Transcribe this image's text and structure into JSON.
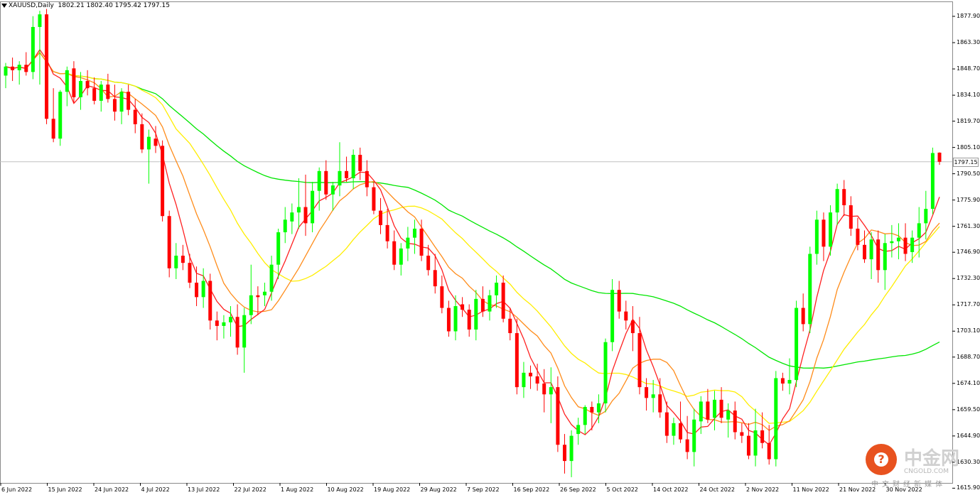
{
  "header": {
    "symbol": "XAUUSD,Daily",
    "ohlc": "1802.21 1802.40 1795.42 1797.15"
  },
  "current_price_label": "1797.15",
  "watermark": {
    "name": "中金网",
    "domain": "CNGOLD.COM",
    "subtitle": "中文财经新媒体"
  },
  "colors": {
    "up": "#00ff00",
    "down": "#ff0000",
    "ma_red": "#ff2020",
    "ma_orange": "#ff8c1a",
    "ma_yellow": "#ffee00",
    "ma_green": "#00e600",
    "frame": "#8a8a8a",
    "price_line": "#c0c0c0"
  },
  "chart_data": {
    "type": "candlestick",
    "y_range": [
      1620.0,
      1885.0
    ],
    "yticks": [
      "1877.90",
      "1863.30",
      "1848.70",
      "1834.10",
      "1819.70",
      "1805.10",
      "1790.50",
      "1775.90",
      "1761.30",
      "1746.90",
      "1732.30",
      "1717.70",
      "1703.10",
      "1688.70",
      "1674.10",
      "1659.50",
      "1644.90",
      "1630.30",
      "1615.90"
    ],
    "xticks": [
      "6 Jun 2022",
      "15 Jun 2022",
      "24 Jun 2022",
      "4 Jul 2022",
      "13 Jul 2022",
      "22 Jul 2022",
      "1 Aug 2022",
      "10 Aug 2022",
      "19 Aug 2022",
      "29 Aug 2022",
      "7 Sep 2022",
      "16 Sep 2022",
      "26 Sep 2022",
      "5 Oct 2022",
      "14 Oct 2022",
      "24 Oct 2022",
      "2 Nov 2022",
      "11 Nov 2022",
      "21 Nov 2022",
      "30 Nov 2022"
    ],
    "current_price": 1797.15,
    "candles": [
      [
        1845,
        1852,
        1838,
        1850
      ],
      [
        1850,
        1855,
        1842,
        1848
      ],
      [
        1848,
        1853,
        1840,
        1851
      ],
      [
        1851,
        1858,
        1845,
        1847
      ],
      [
        1847,
        1878,
        1843,
        1872
      ],
      [
        1872,
        1881,
        1840,
        1879
      ],
      [
        1879,
        1882,
        1818,
        1821
      ],
      [
        1821,
        1838,
        1808,
        1810
      ],
      [
        1810,
        1837,
        1806,
        1836
      ],
      [
        1836,
        1850,
        1828,
        1848
      ],
      [
        1849,
        1853,
        1830,
        1833
      ],
      [
        1833,
        1847,
        1826,
        1842
      ],
      [
        1842,
        1848,
        1834,
        1838
      ],
      [
        1838,
        1844,
        1829,
        1831
      ],
      [
        1831,
        1842,
        1825,
        1840
      ],
      [
        1840,
        1846,
        1830,
        1832
      ],
      [
        1832,
        1840,
        1820,
        1825
      ],
      [
        1825,
        1838,
        1818,
        1836
      ],
      [
        1836,
        1840,
        1823,
        1826
      ],
      [
        1826,
        1832,
        1813,
        1818
      ],
      [
        1818,
        1824,
        1802,
        1804
      ],
      [
        1804,
        1815,
        1785,
        1811
      ],
      [
        1810,
        1817,
        1802,
        1806
      ],
      [
        1806,
        1809,
        1764,
        1767
      ],
      [
        1767,
        1770,
        1733,
        1738
      ],
      [
        1738,
        1752,
        1732,
        1745
      ],
      [
        1745,
        1751,
        1737,
        1741
      ],
      [
        1741,
        1746,
        1727,
        1730
      ],
      [
        1730,
        1739,
        1717,
        1722
      ],
      [
        1722,
        1738,
        1716,
        1731
      ],
      [
        1731,
        1735,
        1704,
        1709
      ],
      [
        1709,
        1714,
        1698,
        1706
      ],
      [
        1706,
        1712,
        1699,
        1708
      ],
      [
        1708,
        1717,
        1700,
        1711
      ],
      [
        1711,
        1718,
        1690,
        1694
      ],
      [
        1694,
        1716,
        1680,
        1712
      ],
      [
        1712,
        1740,
        1707,
        1723
      ],
      [
        1723,
        1728,
        1712,
        1722
      ],
      [
        1723,
        1730,
        1717,
        1725
      ],
      [
        1725,
        1745,
        1720,
        1740
      ],
      [
        1740,
        1760,
        1732,
        1758
      ],
      [
        1758,
        1772,
        1752,
        1765
      ],
      [
        1764,
        1774,
        1757,
        1769
      ],
      [
        1769,
        1788,
        1760,
        1772
      ],
      [
        1772,
        1790,
        1756,
        1763
      ],
      [
        1763,
        1786,
        1758,
        1781
      ],
      [
        1781,
        1794,
        1770,
        1792
      ],
      [
        1792,
        1798,
        1776,
        1779
      ],
      [
        1779,
        1786,
        1770,
        1784
      ],
      [
        1784,
        1808,
        1778,
        1792
      ],
      [
        1792,
        1800,
        1786,
        1788
      ],
      [
        1788,
        1804,
        1782,
        1801
      ],
      [
        1801,
        1805,
        1787,
        1792
      ],
      [
        1792,
        1798,
        1778,
        1783
      ],
      [
        1783,
        1786,
        1768,
        1770
      ],
      [
        1770,
        1777,
        1757,
        1762
      ],
      [
        1762,
        1771,
        1749,
        1753
      ],
      [
        1753,
        1759,
        1737,
        1740
      ],
      [
        1740,
        1752,
        1734,
        1749
      ],
      [
        1749,
        1761,
        1742,
        1755
      ],
      [
        1755,
        1765,
        1746,
        1760
      ],
      [
        1760,
        1765,
        1742,
        1745
      ],
      [
        1745,
        1751,
        1734,
        1737
      ],
      [
        1737,
        1746,
        1724,
        1728
      ],
      [
        1728,
        1734,
        1713,
        1716
      ],
      [
        1716,
        1720,
        1700,
        1703
      ],
      [
        1703,
        1723,
        1698,
        1717
      ],
      [
        1718,
        1722,
        1711,
        1715
      ],
      [
        1715,
        1718,
        1700,
        1704
      ],
      [
        1704,
        1726,
        1698,
        1721
      ],
      [
        1721,
        1728,
        1711,
        1714
      ],
      [
        1714,
        1726,
        1709,
        1723
      ],
      [
        1723,
        1734,
        1716,
        1730
      ],
      [
        1730,
        1734,
        1708,
        1710
      ],
      [
        1710,
        1716,
        1698,
        1702
      ],
      [
        1702,
        1710,
        1668,
        1672
      ],
      [
        1672,
        1686,
        1666,
        1680
      ],
      [
        1680,
        1684,
        1671,
        1678
      ],
      [
        1678,
        1685,
        1670,
        1674
      ],
      [
        1674,
        1682,
        1658,
        1668
      ],
      [
        1668,
        1683,
        1652,
        1672
      ],
      [
        1672,
        1678,
        1636,
        1640
      ],
      [
        1640,
        1646,
        1624,
        1631
      ],
      [
        1631,
        1648,
        1622,
        1645
      ],
      [
        1646,
        1655,
        1640,
        1651
      ],
      [
        1651,
        1662,
        1646,
        1661
      ],
      [
        1661,
        1664,
        1648,
        1658
      ],
      [
        1658,
        1668,
        1652,
        1663
      ],
      [
        1663,
        1699,
        1658,
        1697
      ],
      [
        1697,
        1732,
        1692,
        1726
      ],
      [
        1726,
        1731,
        1710,
        1714
      ],
      [
        1714,
        1720,
        1704,
        1709
      ],
      [
        1709,
        1717,
        1692,
        1702
      ],
      [
        1702,
        1711,
        1668,
        1672
      ],
      [
        1672,
        1677,
        1659,
        1666
      ],
      [
        1666,
        1676,
        1658,
        1668
      ],
      [
        1668,
        1677,
        1655,
        1658
      ],
      [
        1658,
        1664,
        1641,
        1645
      ],
      [
        1645,
        1655,
        1640,
        1652
      ],
      [
        1652,
        1664,
        1641,
        1643
      ],
      [
        1643,
        1656,
        1632,
        1636
      ],
      [
        1636,
        1660,
        1628,
        1654
      ],
      [
        1653,
        1667,
        1646,
        1664
      ],
      [
        1664,
        1671,
        1652,
        1654
      ],
      [
        1655,
        1670,
        1648,
        1665
      ],
      [
        1665,
        1672,
        1652,
        1655
      ],
      [
        1654,
        1663,
        1644,
        1659
      ],
      [
        1659,
        1664,
        1643,
        1647
      ],
      [
        1647,
        1652,
        1641,
        1645
      ],
      [
        1645,
        1652,
        1632,
        1634
      ],
      [
        1634,
        1660,
        1628,
        1648
      ],
      [
        1648,
        1658,
        1638,
        1641
      ],
      [
        1641,
        1651,
        1629,
        1632
      ],
      [
        1632,
        1681,
        1628,
        1677
      ],
      [
        1677,
        1680,
        1670,
        1674
      ],
      [
        1674,
        1688,
        1668,
        1676
      ],
      [
        1676,
        1720,
        1672,
        1716
      ],
      [
        1716,
        1724,
        1703,
        1707
      ],
      [
        1707,
        1750,
        1702,
        1746
      ],
      [
        1746,
        1770,
        1740,
        1765
      ],
      [
        1765,
        1769,
        1742,
        1750
      ],
      [
        1750,
        1773,
        1745,
        1769
      ],
      [
        1769,
        1785,
        1762,
        1782
      ],
      [
        1782,
        1787,
        1767,
        1773
      ],
      [
        1773,
        1778,
        1756,
        1760
      ],
      [
        1760,
        1766,
        1748,
        1751
      ],
      [
        1751,
        1759,
        1741,
        1743
      ],
      [
        1743,
        1758,
        1732,
        1754
      ],
      [
        1754,
        1759,
        1730,
        1737
      ],
      [
        1737,
        1757,
        1726,
        1752
      ],
      [
        1752,
        1762,
        1744,
        1753
      ],
      [
        1753,
        1763,
        1743,
        1755
      ],
      [
        1755,
        1763,
        1742,
        1746
      ],
      [
        1747,
        1759,
        1741,
        1755
      ],
      [
        1755,
        1772,
        1744,
        1763
      ],
      [
        1763,
        1781,
        1754,
        1771
      ],
      [
        1771,
        1805,
        1768,
        1802
      ],
      [
        1802.21,
        1802.4,
        1795.42,
        1797.15
      ]
    ]
  }
}
